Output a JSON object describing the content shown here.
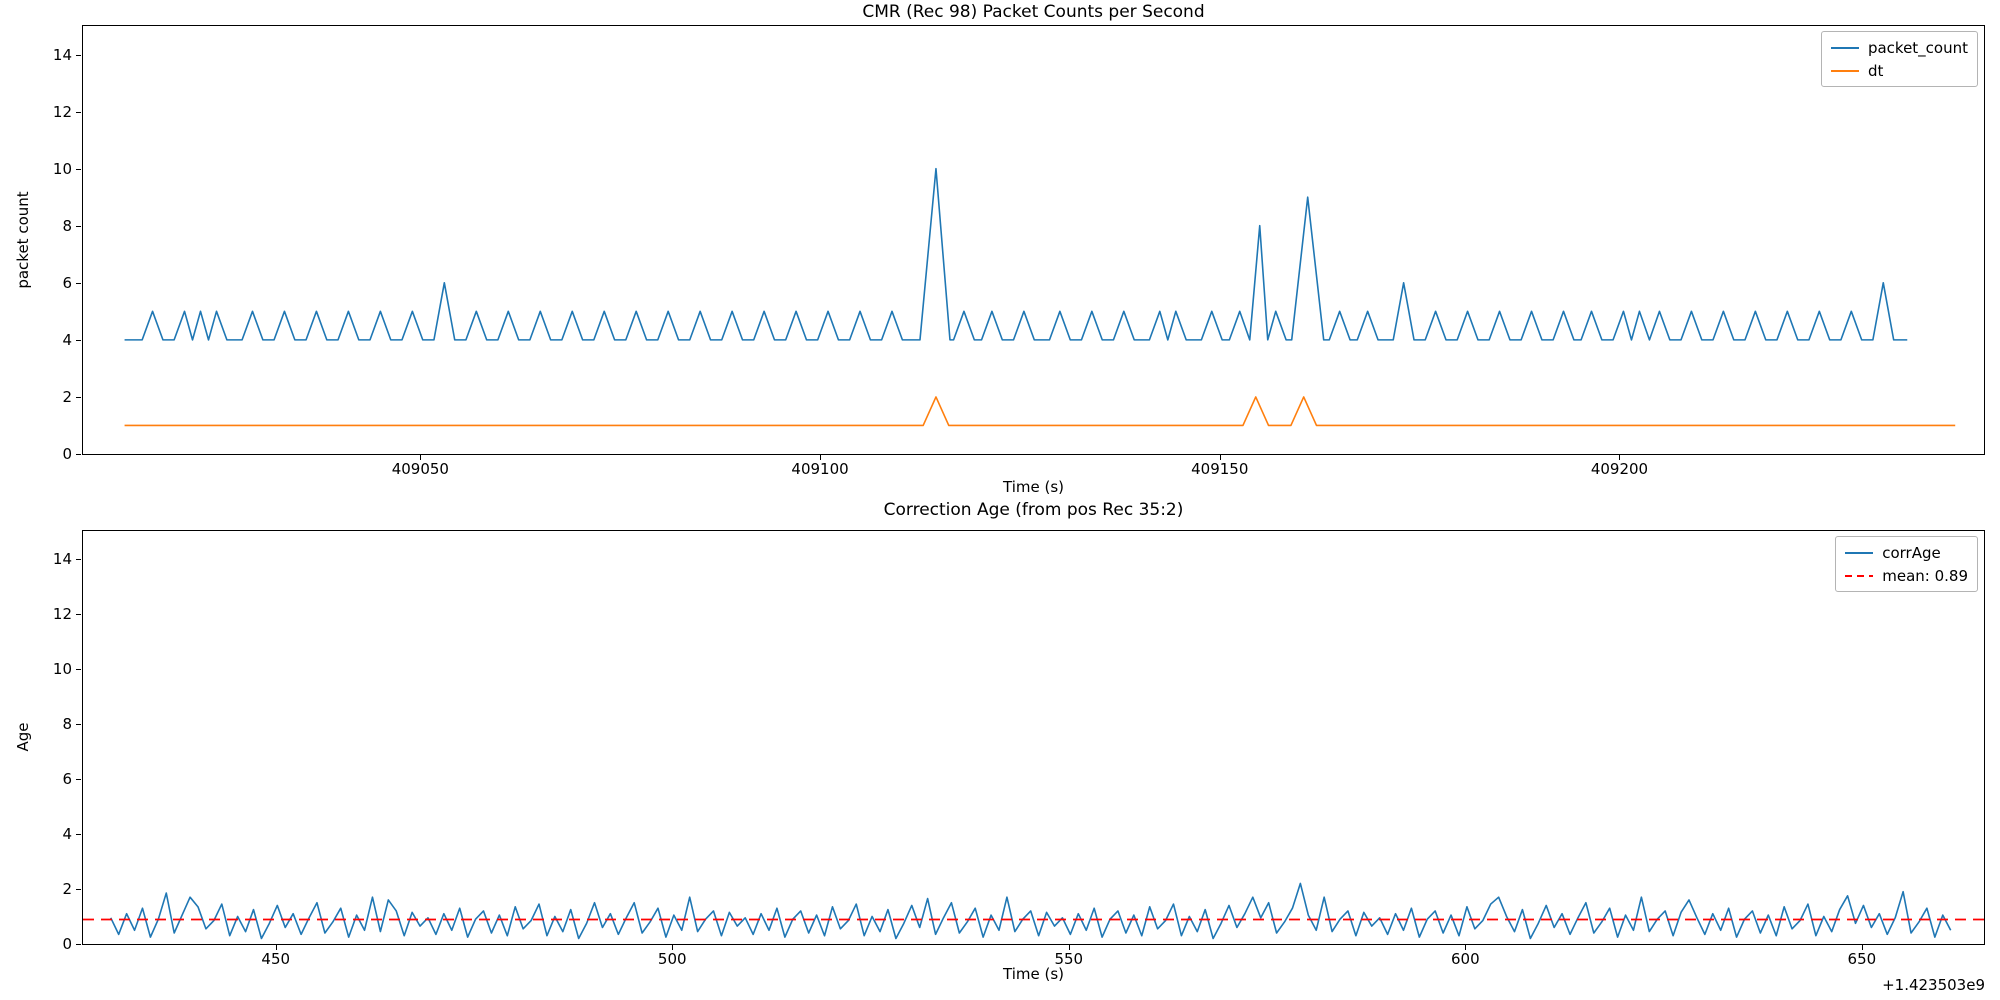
{
  "figure": {
    "background": "#ffffff",
    "spine_color": "#000000"
  },
  "chart_data": [
    {
      "type": "line",
      "title": "CMR (Rec 98) Packet Counts per Second",
      "xlabel": "Time (s)",
      "ylabel": "packet count",
      "xlim": [
        409007.8,
        409245.6
      ],
      "ylim": [
        0,
        15
      ],
      "grid": false,
      "xticks": [
        {
          "value": 409050,
          "label": "409050"
        },
        {
          "value": 409100,
          "label": "409100"
        },
        {
          "value": 409150,
          "label": "409150"
        },
        {
          "value": 409200,
          "label": "409200"
        }
      ],
      "yticks": [
        {
          "value": 0,
          "label": "0"
        },
        {
          "value": 2,
          "label": "2"
        },
        {
          "value": 4,
          "label": "4"
        },
        {
          "value": 6,
          "label": "6"
        },
        {
          "value": 8,
          "label": "8"
        },
        {
          "value": 10,
          "label": "10"
        },
        {
          "value": 12,
          "label": "12"
        },
        {
          "value": 14,
          "label": "14"
        }
      ],
      "legend": {
        "position": "upper right",
        "entries": [
          {
            "label": "packet_count",
            "color": "#1f77b4",
            "dash": false
          },
          {
            "label": "dt",
            "color": "#ff7f0e",
            "dash": false
          }
        ]
      },
      "series": [
        {
          "name": "packet_count",
          "color": "#1f77b4",
          "shape": "baseline-spikes",
          "baseline": 4,
          "t_start": 409013,
          "t_end": 409236,
          "spikes": [
            [
              409016.5,
              5
            ],
            [
              409020.5,
              5
            ],
            [
              409022.5,
              5
            ],
            [
              409024.5,
              5
            ],
            [
              409029,
              5
            ],
            [
              409033,
              5
            ],
            [
              409037,
              5
            ],
            [
              409041,
              5
            ],
            [
              409045,
              5
            ],
            [
              409049,
              5
            ],
            [
              409053,
              6
            ],
            [
              409057,
              5
            ],
            [
              409061,
              5
            ],
            [
              409065,
              5
            ],
            [
              409069,
              5
            ],
            [
              409073,
              5
            ],
            [
              409077,
              5
            ],
            [
              409081,
              5
            ],
            [
              409085,
              5
            ],
            [
              409089,
              5
            ],
            [
              409093,
              5
            ],
            [
              409097,
              5
            ],
            [
              409101,
              5
            ],
            [
              409105,
              5
            ],
            [
              409109,
              5
            ],
            [
              409114.5,
              10
            ],
            [
              409118,
              5
            ],
            [
              409121.5,
              5
            ],
            [
              409125.5,
              5
            ],
            [
              409130,
              5
            ],
            [
              409134,
              5
            ],
            [
              409138,
              5
            ],
            [
              409142.5,
              5
            ],
            [
              409144.5,
              5
            ],
            [
              409149,
              5
            ],
            [
              409152.5,
              5
            ],
            [
              409155,
              8
            ],
            [
              409157,
              5
            ],
            [
              409161,
              9
            ],
            [
              409165,
              5
            ],
            [
              409168.5,
              5
            ],
            [
              409173,
              6
            ],
            [
              409177,
              5
            ],
            [
              409181,
              5
            ],
            [
              409185,
              5
            ],
            [
              409189,
              5
            ],
            [
              409193,
              5
            ],
            [
              409196.5,
              5
            ],
            [
              409200.5,
              5
            ],
            [
              409202.5,
              5
            ],
            [
              409205,
              5
            ],
            [
              409209,
              5
            ],
            [
              409213,
              5
            ],
            [
              409217,
              5
            ],
            [
              409221,
              5
            ],
            [
              409225,
              5
            ],
            [
              409229,
              5
            ],
            [
              409233,
              6
            ]
          ]
        },
        {
          "name": "dt",
          "color": "#ff7f0e",
          "shape": "baseline-spikes",
          "baseline": 1,
          "t_start": 409013,
          "t_end": 409242,
          "spikes": [
            [
              409114.5,
              2
            ],
            [
              409154.5,
              2
            ],
            [
              409160.5,
              2
            ]
          ]
        }
      ]
    },
    {
      "type": "line",
      "title": "Correction Age (from pos Rec 35:2)",
      "xlabel": "Time (s)",
      "ylabel": "Age",
      "x_offset_text": "+1.423503e9",
      "xlim": [
        425.7,
        665.4
      ],
      "ylim": [
        0,
        15
      ],
      "grid": false,
      "xticks": [
        {
          "value": 450,
          "label": "450"
        },
        {
          "value": 500,
          "label": "500"
        },
        {
          "value": 550,
          "label": "550"
        },
        {
          "value": 600,
          "label": "600"
        },
        {
          "value": 650,
          "label": "650"
        }
      ],
      "yticks": [
        {
          "value": 0,
          "label": "0"
        },
        {
          "value": 2,
          "label": "2"
        },
        {
          "value": 4,
          "label": "4"
        },
        {
          "value": 6,
          "label": "6"
        },
        {
          "value": 8,
          "label": "8"
        },
        {
          "value": 10,
          "label": "10"
        },
        {
          "value": 12,
          "label": "12"
        },
        {
          "value": 14,
          "label": "14"
        }
      ],
      "legend": {
        "position": "upper right",
        "entries": [
          {
            "label": "corrAge",
            "color": "#1f77b4",
            "dash": false
          },
          {
            "label": "mean: 0.89",
            "color": "#ff0000",
            "dash": true
          }
        ]
      },
      "series": [
        {
          "name": "corrAge",
          "color": "#1f77b4",
          "shape": "sawtooth",
          "t_start": 429.2,
          "t_end": 661.5,
          "t_step": 1,
          "pattern": [
            0.95,
            0.35,
            1.1,
            0.5,
            1.3,
            0.25,
            0.9,
            1.2,
            0.4,
            1.05,
            0.3,
            1.35,
            0.55,
            0.85,
            1.45,
            0.3,
            1.0,
            0.45,
            1.25,
            0.2,
            0.75,
            1.4,
            0.6,
            1.1,
            0.35,
            0.95,
            1.5,
            0.4,
            0.8,
            1.3,
            0.25,
            1.05,
            0.5,
            1.7,
            0.45,
            0.9,
            1.2,
            0.3,
            1.15,
            0.65
          ],
          "peaks": [
            [
              436.5,
              1.85
            ],
            [
              439.5,
              1.7
            ],
            [
              464.5,
              1.6
            ],
            [
              490,
              1.5
            ],
            [
              532.5,
              1.65
            ],
            [
              573.5,
              1.7
            ],
            [
              579.5,
              2.2
            ],
            [
              604,
              1.7
            ],
            [
              628,
              1.6
            ],
            [
              648.5,
              1.75
            ],
            [
              655,
              1.9
            ]
          ]
        }
      ],
      "mean_line": {
        "label": "mean: 0.89",
        "value": 0.89,
        "color": "#ff0000",
        "dash": true
      }
    }
  ]
}
